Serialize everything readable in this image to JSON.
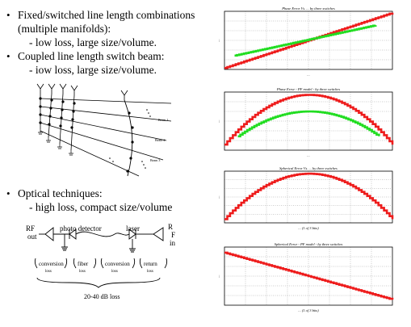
{
  "bullets_top": [
    {
      "text": "Fixed/switched line length combinations (multiple manifolds):",
      "sub": "low loss, large size/volume."
    },
    {
      "text": "Coupled line length switch beam:",
      "sub": "iow loss, large size/volume."
    }
  ],
  "bullet_optical": {
    "text": "Optical techniques:",
    "sub": "high loss, compact size/volume"
  },
  "optical_diagram": {
    "rf_out": "RF\nout",
    "photo_detector": "photo detector",
    "laser": "laser",
    "rf_in": "R\nF\nin",
    "segments": [
      {
        "label": "conversion",
        "loss": "loss"
      },
      {
        "label": "fiber",
        "loss": "loss"
      },
      {
        "label": "conversion",
        "loss": "loss"
      },
      {
        "label": "return",
        "loss": "loss"
      }
    ],
    "total": "20-40 dB loss"
  },
  "beam_diagram": {
    "beam_labels": [
      "Beam 1",
      "Beam 2",
      "Beam 3"
    ]
  },
  "chart_data": [
    {
      "type": "line",
      "title": "Phase Error Vs. ... by three switches",
      "xlabel": "...",
      "ylabel": "...",
      "series": [
        {
          "color": "#ee1c1c",
          "points": [
            [
              0,
              -1
            ],
            [
              1,
              1
            ]
          ]
        },
        {
          "color": "#22dd22",
          "points": [
            [
              0.06,
              -0.55
            ],
            [
              0.9,
              0.55
            ]
          ]
        }
      ]
    },
    {
      "type": "line",
      "title": "Phase Error - PF model - by three switches",
      "xlabel": "...",
      "ylabel": "...",
      "series": [
        {
          "color": "#ee1c1c",
          "shape": "arch",
          "peak": 0.95,
          "base": -0.85
        },
        {
          "color": "#22dd22",
          "shape": "arch",
          "peak": 0.35,
          "base": -0.55
        }
      ]
    },
    {
      "type": "line",
      "title": "Spherical Error Vs. ... by three switches",
      "xlabel": "... (1 of 3 bits)",
      "ylabel": "...",
      "series": [
        {
          "color": "#ee1c1c",
          "shape": "arch",
          "peak": 0.95,
          "base": -0.9
        }
      ]
    },
    {
      "type": "line",
      "title": "Spherical Error - PF model - by three switches",
      "xlabel": "... (1 of 3 bits)",
      "ylabel": "...",
      "series": [
        {
          "color": "#ee1c1c",
          "points": [
            [
              0,
              0.85
            ],
            [
              1,
              -0.85
            ]
          ]
        }
      ]
    }
  ],
  "colors": {
    "red": "#ee1c1c",
    "green": "#22dd22",
    "grid": "#555555"
  }
}
